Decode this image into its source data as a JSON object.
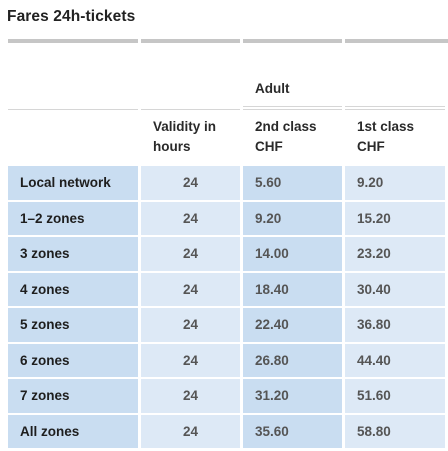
{
  "title": "Fares 24h-tickets",
  "group_header": "Adult",
  "columns": {
    "validity": [
      "Validity in",
      "hours"
    ],
    "second_class": [
      "2nd class",
      "CHF"
    ],
    "first_class": [
      "1st class",
      "CHF"
    ]
  },
  "rows": [
    {
      "zone": "Local network",
      "validity": "24",
      "second": "5.60",
      "first": "9.20"
    },
    {
      "zone": "1–2 zones",
      "validity": "24",
      "second": "9.20",
      "first": "15.20"
    },
    {
      "zone": "3 zones",
      "validity": "24",
      "second": "14.00",
      "first": "23.20"
    },
    {
      "zone": "4 zones",
      "validity": "24",
      "second": "18.40",
      "first": "30.40"
    },
    {
      "zone": "5 zones",
      "validity": "24",
      "second": "22.40",
      "first": "36.80"
    },
    {
      "zone": "6 zones",
      "validity": "24",
      "second": "26.80",
      "first": "44.40"
    },
    {
      "zone": "7 zones",
      "validity": "24",
      "second": "31.20",
      "first": "51.60"
    },
    {
      "zone": "All zones",
      "validity": "24",
      "second": "35.60",
      "first": "58.80"
    }
  ],
  "colors": {
    "zone_cell": "#c9ddf1",
    "light_cell": "#dde9f6",
    "rule": "#c6c6c6"
  }
}
